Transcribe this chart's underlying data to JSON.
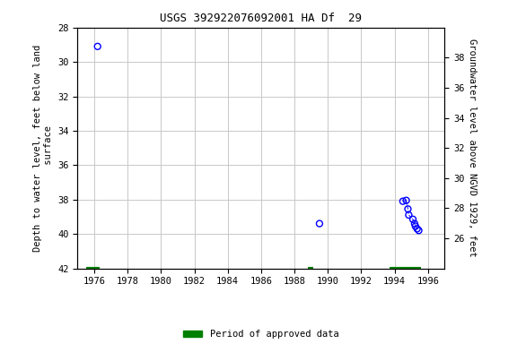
{
  "title": "USGS 392922076092001 HA Df  29",
  "ylabel_left": "Depth to water level, feet below land\n surface",
  "ylabel_right": "Groundwater level above NGVD 1929, feet",
  "xlim": [
    1975.0,
    1997.0
  ],
  "ylim_left": [
    42,
    28
  ],
  "ylim_right": [
    24.0,
    40.0
  ],
  "yticks_left": [
    28,
    30,
    32,
    34,
    36,
    38,
    40,
    42
  ],
  "yticks_right": [
    26,
    28,
    30,
    32,
    34,
    36,
    38
  ],
  "xticks": [
    1976,
    1978,
    1980,
    1982,
    1984,
    1986,
    1988,
    1990,
    1992,
    1994,
    1996
  ],
  "scatter_x": [
    1976.2,
    1989.5,
    1994.5,
    1994.7,
    1994.8,
    1994.85,
    1995.1,
    1995.2,
    1995.25,
    1995.35,
    1995.45
  ],
  "scatter_y": [
    29.1,
    39.4,
    38.1,
    38.05,
    38.55,
    38.9,
    39.15,
    39.4,
    39.55,
    39.7,
    39.8
  ],
  "scatter_color": "#0000ff",
  "scatter_marker": "o",
  "scatter_size": 25,
  "scatter_facecolor": "none",
  "scatter_linewidth": 1.0,
  "dashed_line_x": [
    1994.5,
    1994.7,
    1994.8,
    1994.85,
    1995.1,
    1995.2,
    1995.25,
    1995.35,
    1995.45
  ],
  "dashed_line_y": [
    38.1,
    38.05,
    38.55,
    38.9,
    39.15,
    39.4,
    39.55,
    39.7,
    39.8
  ],
  "approved_segments": [
    {
      "x_start": 1975.5,
      "x_end": 1976.3,
      "y": 42
    },
    {
      "x_start": 1988.8,
      "x_end": 1989.1,
      "y": 42
    },
    {
      "x_start": 1993.7,
      "x_end": 1995.6,
      "y": 42
    }
  ],
  "approved_color": "#008000",
  "approved_linewidth": 3,
  "legend_label": "Period of approved data",
  "background_color": "#ffffff",
  "plot_bg_color": "#ffffff",
  "grid_color": "#c8c8c8",
  "title_fontsize": 9,
  "label_fontsize": 7.5,
  "tick_fontsize": 7.5
}
